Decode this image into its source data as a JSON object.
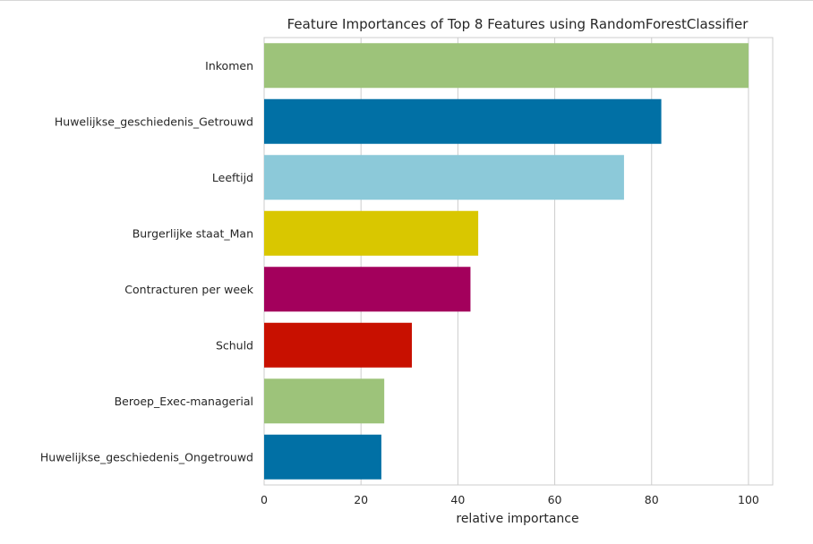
{
  "chart_data": {
    "type": "bar",
    "orientation": "horizontal",
    "title": "Feature Importances of Top 8 Features using RandomForestClassifier",
    "xlabel": "relative importance",
    "ylabel": "",
    "xlim": [
      0,
      105
    ],
    "xticks": [
      0,
      20,
      40,
      60,
      80,
      100
    ],
    "grid": true,
    "categories": [
      "Inkomen",
      "Huwelijkse_geschiedenis_Getrouwd",
      "Leeftijd",
      "Burgerlijke staat_Man",
      "Contracturen per week",
      "Schuld",
      "Beroep_Exec-managerial",
      "Huwelijkse_geschiedenis_Ongetrouwd"
    ],
    "values": [
      100,
      82,
      74.3,
      44.2,
      42.6,
      30.5,
      24.8,
      24.2
    ],
    "colors": [
      "#9dc37a",
      "#0170a5",
      "#8cc9d9",
      "#d9c700",
      "#a3005c",
      "#c81000",
      "#9dc37a",
      "#0170a5"
    ]
  }
}
